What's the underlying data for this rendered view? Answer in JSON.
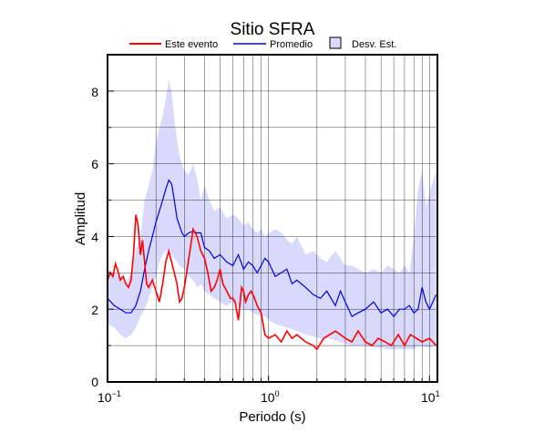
{
  "chart_data": {
    "type": "line",
    "title": "Sitio SFRA",
    "xlabel": "Periodo (s)",
    "ylabel": "Amplitud",
    "xscale": "log",
    "xlim": [
      0.1,
      11.2
    ],
    "ylim": [
      0,
      9
    ],
    "grid": true,
    "legend_position": "top",
    "x_ticks": [
      {
        "base": "10",
        "exp": "−1",
        "value": 0.1
      },
      {
        "base": "10",
        "exp": "0",
        "value": 1
      },
      {
        "base": "10",
        "exp": "1",
        "value": 10
      }
    ],
    "y_ticks": [
      0,
      2,
      4,
      6,
      8
    ],
    "legend": [
      {
        "label": "Este evento",
        "kind": "line",
        "color": "#ff0000"
      },
      {
        "label": "Promedio",
        "kind": "line",
        "color": "#0000dd"
      },
      {
        "label": "Desv. Est.",
        "kind": "box",
        "color": "#d9d9fb"
      }
    ],
    "colors": {
      "event": "#ff0000",
      "mean": "#0000dd",
      "band": "#d9d9fb"
    },
    "series": [
      {
        "name": "Este evento",
        "x": [
          0.1,
          0.104,
          0.108,
          0.112,
          0.117,
          0.12,
          0.125,
          0.13,
          0.135,
          0.14,
          0.145,
          0.15,
          0.155,
          0.16,
          0.165,
          0.17,
          0.175,
          0.18,
          0.19,
          0.2,
          0.21,
          0.22,
          0.23,
          0.24,
          0.25,
          0.26,
          0.27,
          0.28,
          0.29,
          0.3,
          0.31,
          0.32,
          0.33,
          0.34,
          0.36,
          0.38,
          0.4,
          0.42,
          0.44,
          0.46,
          0.48,
          0.5,
          0.52,
          0.55,
          0.58,
          0.6,
          0.62,
          0.65,
          0.68,
          0.7,
          0.72,
          0.75,
          0.78,
          0.82,
          0.85,
          0.9,
          0.95,
          1.0,
          1.1,
          1.2,
          1.3,
          1.4,
          1.5,
          1.7,
          1.9,
          2.0,
          2.2,
          2.4,
          2.6,
          2.8,
          3.0,
          3.3,
          3.6,
          4.0,
          4.4,
          4.8,
          5.3,
          5.8,
          6.4,
          7.0,
          7.6,
          8.3,
          9.0,
          10.0,
          11.0
        ],
        "values": [
          2.8,
          3.0,
          2.9,
          3.25,
          3.0,
          2.8,
          2.9,
          2.7,
          2.6,
          2.8,
          3.5,
          4.6,
          4.3,
          3.5,
          3.9,
          3.3,
          2.7,
          2.6,
          2.8,
          2.5,
          2.2,
          2.7,
          3.3,
          3.6,
          3.3,
          3.0,
          2.7,
          2.2,
          2.3,
          2.6,
          3.0,
          3.4,
          3.8,
          4.2,
          4.0,
          3.6,
          3.4,
          3.0,
          2.5,
          2.6,
          2.8,
          3.1,
          2.7,
          2.5,
          2.3,
          2.3,
          2.2,
          1.7,
          2.6,
          2.5,
          2.2,
          2.4,
          2.5,
          2.3,
          2.1,
          1.9,
          1.3,
          1.2,
          1.3,
          1.1,
          1.4,
          1.2,
          1.3,
          1.1,
          1.0,
          0.9,
          1.2,
          1.3,
          1.4,
          1.3,
          1.2,
          1.1,
          1.4,
          1.1,
          1.0,
          1.2,
          1.1,
          1.0,
          1.3,
          1.0,
          1.3,
          1.2,
          1.1,
          1.2,
          1.0
        ]
      },
      {
        "name": "Promedio",
        "x": [
          0.1,
          0.11,
          0.12,
          0.13,
          0.14,
          0.15,
          0.16,
          0.17,
          0.18,
          0.19,
          0.2,
          0.21,
          0.22,
          0.23,
          0.24,
          0.25,
          0.26,
          0.27,
          0.28,
          0.29,
          0.3,
          0.32,
          0.34,
          0.36,
          0.38,
          0.4,
          0.43,
          0.46,
          0.5,
          0.55,
          0.6,
          0.65,
          0.7,
          0.75,
          0.8,
          0.85,
          0.9,
          0.95,
          1.0,
          1.1,
          1.2,
          1.3,
          1.4,
          1.5,
          1.7,
          1.9,
          2.1,
          2.3,
          2.6,
          2.8,
          3.0,
          3.3,
          3.6,
          4.0,
          4.5,
          5.0,
          5.5,
          6.0,
          6.5,
          7.0,
          7.5,
          8.0,
          8.5,
          9.0,
          9.5,
          10.0,
          11.0
        ],
        "values": [
          2.3,
          2.1,
          2.0,
          1.9,
          1.9,
          2.1,
          2.5,
          3.1,
          3.6,
          4.0,
          4.4,
          4.7,
          5.0,
          5.3,
          5.55,
          5.45,
          5.0,
          4.5,
          4.3,
          4.1,
          4.0,
          4.1,
          4.15,
          4.1,
          4.1,
          3.7,
          3.6,
          3.4,
          3.5,
          3.3,
          3.2,
          3.5,
          3.1,
          3.3,
          3.2,
          3.0,
          3.2,
          3.4,
          3.3,
          2.9,
          3.0,
          3.1,
          2.7,
          2.8,
          2.6,
          2.4,
          2.3,
          2.5,
          2.1,
          2.5,
          2.2,
          1.8,
          1.9,
          2.0,
          2.2,
          1.9,
          2.0,
          1.8,
          2.0,
          2.0,
          2.1,
          1.9,
          2.0,
          2.6,
          2.2,
          2.0,
          2.4
        ]
      }
    ],
    "band": {
      "name": "Desv. Est.",
      "x": [
        0.1,
        0.11,
        0.12,
        0.13,
        0.14,
        0.15,
        0.16,
        0.17,
        0.18,
        0.19,
        0.2,
        0.21,
        0.22,
        0.23,
        0.24,
        0.25,
        0.26,
        0.27,
        0.28,
        0.3,
        0.32,
        0.34,
        0.36,
        0.38,
        0.4,
        0.43,
        0.46,
        0.5,
        0.55,
        0.6,
        0.65,
        0.7,
        0.75,
        0.8,
        0.85,
        0.9,
        0.95,
        1.0,
        1.1,
        1.2,
        1.3,
        1.4,
        1.5,
        1.7,
        1.9,
        2.1,
        2.3,
        2.6,
        2.8,
        3.0,
        3.3,
        3.6,
        4.0,
        4.5,
        5.0,
        5.5,
        6.0,
        6.5,
        7.0,
        7.5,
        8.0,
        8.5,
        9.0,
        9.5,
        10.0,
        11.0
      ],
      "upper": [
        3.1,
        3.0,
        2.9,
        2.7,
        3.0,
        3.6,
        4.0,
        5.0,
        5.4,
        5.8,
        6.6,
        7.0,
        7.3,
        7.8,
        8.3,
        8.0,
        7.2,
        6.7,
        6.2,
        5.8,
        5.7,
        6.0,
        5.6,
        5.0,
        5.4,
        5.0,
        4.7,
        4.8,
        4.5,
        4.6,
        4.5,
        4.3,
        4.4,
        4.2,
        4.1,
        4.2,
        4.0,
        4.1,
        4.2,
        4.1,
        3.9,
        3.8,
        4.0,
        3.5,
        3.6,
        3.4,
        3.3,
        3.6,
        3.4,
        3.2,
        3.2,
        3.1,
        3.0,
        3.1,
        3.0,
        3.2,
        3.1,
        3.0,
        3.2,
        3.0,
        4.0,
        5.3,
        5.8,
        4.8,
        5.2,
        5.8
      ],
      "lower": [
        1.6,
        1.5,
        1.3,
        1.2,
        1.3,
        1.5,
        1.8,
        2.0,
        2.3,
        2.6,
        2.9,
        3.3,
        3.5,
        3.6,
        3.6,
        3.5,
        3.4,
        3.3,
        3.2,
        3.1,
        2.9,
        2.8,
        2.6,
        2.7,
        2.5,
        2.4,
        2.3,
        2.2,
        2.1,
        2.2,
        2.1,
        2.0,
        2.0,
        1.9,
        1.85,
        1.8,
        1.8,
        1.7,
        1.6,
        1.55,
        1.5,
        1.45,
        1.4,
        1.3,
        1.25,
        1.2,
        1.2,
        1.15,
        1.1,
        1.05,
        1.0,
        1.0,
        1.0,
        0.95,
        0.95,
        0.9,
        0.9,
        0.9,
        0.9,
        0.9,
        0.9,
        1.0,
        1.0,
        0.95,
        0.95,
        1.0
      ]
    }
  }
}
